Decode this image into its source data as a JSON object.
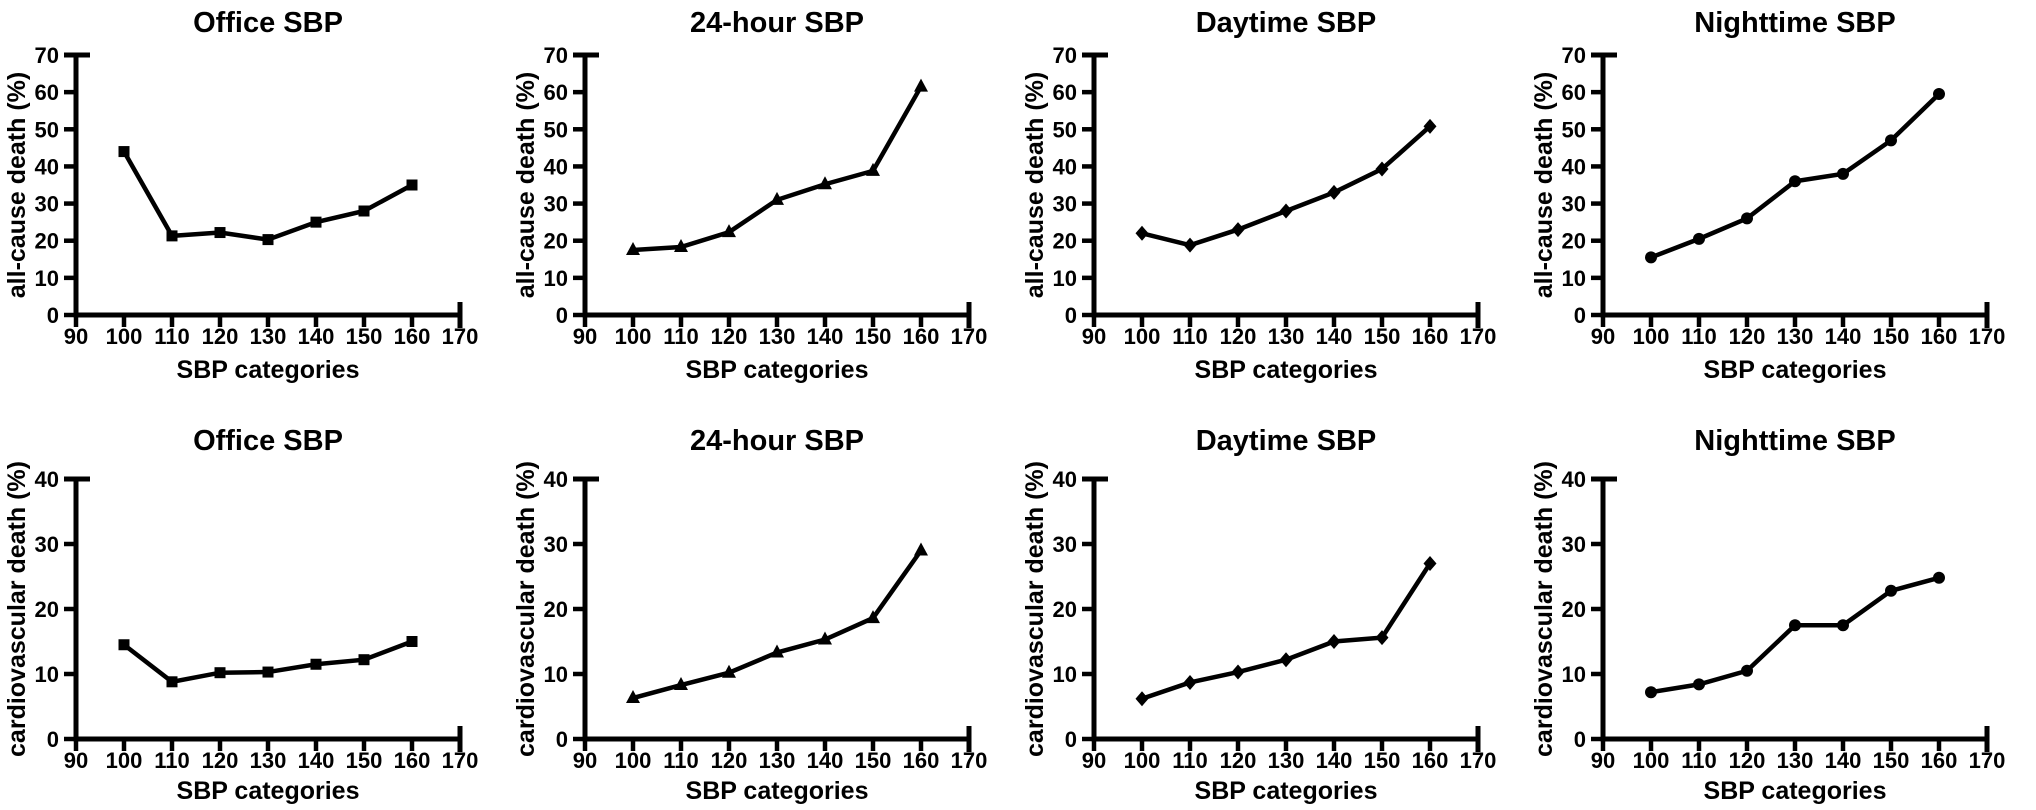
{
  "figure": {
    "background_color": "#ffffff",
    "line_color": "#000000",
    "x_axis_label": "SBP categories",
    "rows": [
      {
        "y_axis_label": "all-cause death (%)"
      },
      {
        "y_axis_label": "cardiovascular death (%)"
      }
    ]
  },
  "chart_data": [
    {
      "type": "line",
      "title": "Office SBP",
      "xlabel": "SBP categories",
      "ylabel": "all-cause death (%)",
      "marker": "square",
      "x": [
        100,
        110,
        120,
        130,
        140,
        150,
        160
      ],
      "y": [
        44,
        21.3,
        22.2,
        20.3,
        25,
        28,
        35
      ],
      "xlim": [
        90,
        170
      ],
      "ylim": [
        0,
        70
      ],
      "xticks": [
        90,
        100,
        110,
        120,
        130,
        140,
        150,
        160,
        170
      ],
      "yticks": [
        0,
        10,
        20,
        30,
        40,
        50,
        60,
        70
      ],
      "grid": false,
      "legend": "none"
    },
    {
      "type": "line",
      "title": "24-hour SBP",
      "xlabel": "SBP categories",
      "ylabel": "all-cause death (%)",
      "marker": "triangle",
      "x": [
        100,
        110,
        120,
        130,
        140,
        150,
        160
      ],
      "y": [
        17.5,
        18.3,
        22.3,
        31,
        35.2,
        38.8,
        61.5
      ],
      "xlim": [
        90,
        170
      ],
      "ylim": [
        0,
        70
      ],
      "xticks": [
        90,
        100,
        110,
        120,
        130,
        140,
        150,
        160,
        170
      ],
      "yticks": [
        0,
        10,
        20,
        30,
        40,
        50,
        60,
        70
      ],
      "grid": false,
      "legend": "none"
    },
    {
      "type": "line",
      "title": "Daytime SBP",
      "xlabel": "SBP categories",
      "ylabel": "all-cause death (%)",
      "marker": "diamond",
      "x": [
        100,
        110,
        120,
        130,
        140,
        150,
        160
      ],
      "y": [
        22,
        18.8,
        23,
        28,
        33,
        39.3,
        50.8
      ],
      "xlim": [
        90,
        170
      ],
      "ylim": [
        0,
        70
      ],
      "xticks": [
        90,
        100,
        110,
        120,
        130,
        140,
        150,
        160,
        170
      ],
      "yticks": [
        0,
        10,
        20,
        30,
        40,
        50,
        60,
        70
      ],
      "grid": false,
      "legend": "none"
    },
    {
      "type": "line",
      "title": "Nighttime SBP",
      "xlabel": "SBP categories",
      "ylabel": "all-cause death (%)",
      "marker": "circle",
      "x": [
        100,
        110,
        120,
        130,
        140,
        150,
        160
      ],
      "y": [
        15.5,
        20.5,
        26,
        36,
        38,
        47,
        59.5
      ],
      "xlim": [
        90,
        170
      ],
      "ylim": [
        0,
        70
      ],
      "xticks": [
        90,
        100,
        110,
        120,
        130,
        140,
        150,
        160,
        170
      ],
      "yticks": [
        0,
        10,
        20,
        30,
        40,
        50,
        60,
        70
      ],
      "grid": false,
      "legend": "none"
    },
    {
      "type": "line",
      "title": "Office SBP",
      "xlabel": "SBP categories",
      "ylabel": "cardiovascular death (%)",
      "marker": "square",
      "x": [
        100,
        110,
        120,
        130,
        140,
        150,
        160
      ],
      "y": [
        14.5,
        8.8,
        10.2,
        10.3,
        11.5,
        12.2,
        15
      ],
      "xlim": [
        90,
        170
      ],
      "ylim": [
        0,
        40
      ],
      "xticks": [
        90,
        100,
        110,
        120,
        130,
        140,
        150,
        160,
        170
      ],
      "yticks": [
        0,
        10,
        20,
        30,
        40
      ],
      "grid": false,
      "legend": "none"
    },
    {
      "type": "line",
      "title": "24-hour SBP",
      "xlabel": "SBP categories",
      "ylabel": "cardiovascular death (%)",
      "marker": "triangle",
      "x": [
        100,
        110,
        120,
        130,
        140,
        150,
        160
      ],
      "y": [
        6.3,
        8.3,
        10.2,
        13.3,
        15.3,
        18.6,
        29
      ],
      "xlim": [
        90,
        170
      ],
      "ylim": [
        0,
        40
      ],
      "xticks": [
        90,
        100,
        110,
        120,
        130,
        140,
        150,
        160,
        170
      ],
      "yticks": [
        0,
        10,
        20,
        30,
        40
      ],
      "grid": false,
      "legend": "none"
    },
    {
      "type": "line",
      "title": "Daytime SBP",
      "xlabel": "SBP categories",
      "ylabel": "cardiovascular death (%)",
      "marker": "diamond",
      "x": [
        100,
        110,
        120,
        130,
        140,
        150,
        160
      ],
      "y": [
        6.2,
        8.7,
        10.3,
        12.2,
        15,
        15.6,
        27
      ],
      "xlim": [
        90,
        170
      ],
      "ylim": [
        0,
        40
      ],
      "xticks": [
        90,
        100,
        110,
        120,
        130,
        140,
        150,
        160,
        170
      ],
      "yticks": [
        0,
        10,
        20,
        30,
        40
      ],
      "grid": false,
      "legend": "none"
    },
    {
      "type": "line",
      "title": "Nighttime SBP",
      "xlabel": "SBP categories",
      "ylabel": "cardiovascular death (%)",
      "marker": "circle",
      "x": [
        100,
        110,
        120,
        130,
        140,
        150,
        160
      ],
      "y": [
        7.2,
        8.4,
        10.5,
        17.5,
        17.5,
        22.8,
        24.8
      ],
      "xlim": [
        90,
        170
      ],
      "ylim": [
        0,
        40
      ],
      "xticks": [
        90,
        100,
        110,
        120,
        130,
        140,
        150,
        160,
        170
      ],
      "yticks": [
        0,
        10,
        20,
        30,
        40
      ],
      "grid": false,
      "legend": "none"
    }
  ]
}
